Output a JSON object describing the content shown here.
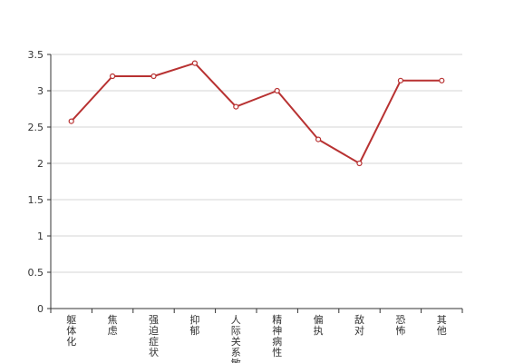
{
  "chart_data": {
    "type": "line",
    "categories": [
      "躯体化",
      "焦虑",
      "强迫症状",
      "抑郁",
      "人际关系敏感",
      "精神病性",
      "偏执",
      "敌对",
      "恐怖",
      "其他"
    ],
    "series": [
      {
        "values": [
          2.58,
          3.2,
          3.2,
          3.38,
          2.78,
          3.0,
          2.33,
          2.0,
          3.14,
          3.14
        ]
      }
    ],
    "yticks": [
      "0",
      "0.5",
      "1",
      "1.5",
      "2",
      "2.5",
      "3",
      "3.5"
    ],
    "ylim": [
      0,
      3.5
    ],
    "grid": true,
    "legend": "none"
  },
  "colors": {
    "series": "#b83232"
  }
}
